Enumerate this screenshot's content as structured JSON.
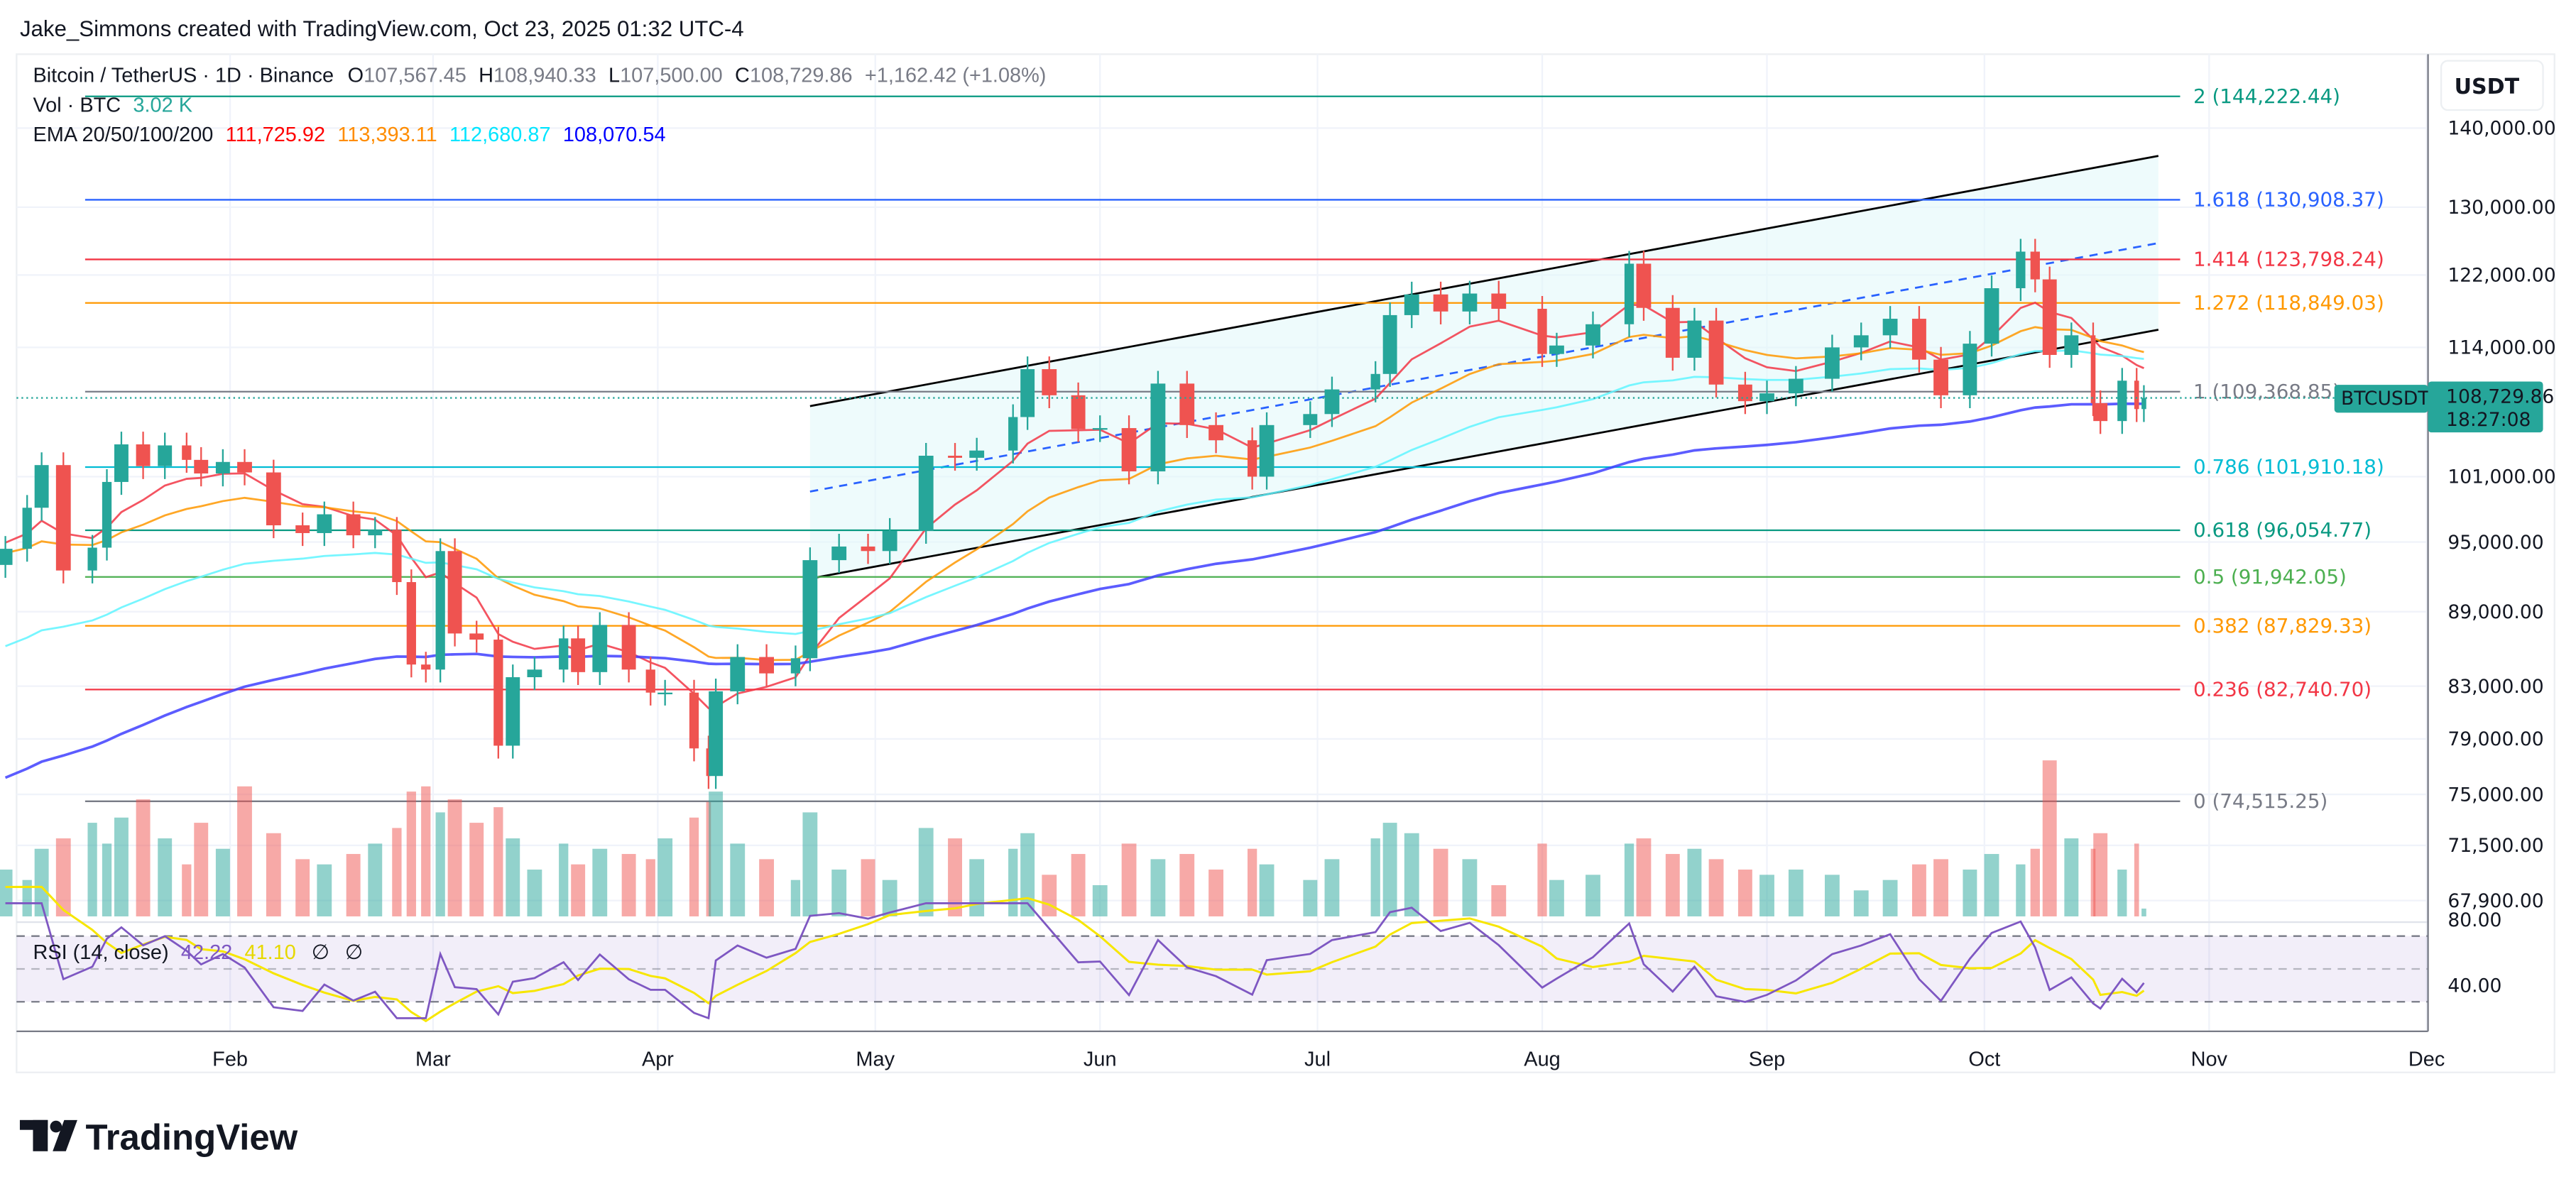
{
  "header": {
    "credit": "Jake_Simmons created with TradingView.com, Oct 23, 2025 01:32 UTC-4"
  },
  "legend": {
    "symbol": "Bitcoin / TetherUS · 1D · Binance",
    "o_label": "O",
    "o_value": "107,567.45",
    "h_label": "H",
    "h_value": "108,940.33",
    "l_label": "L",
    "l_value": "107,500.00",
    "c_label": "C",
    "c_value": "108,729.86",
    "change": "+1,162.42 (+1.08%)",
    "vol_label": "Vol · BTC",
    "vol_value": "3.02 K",
    "ema_label": "EMA 20/50/100/200",
    "ema_values": [
      "111,725.92",
      "113,393.11",
      "112,680.87",
      "108,070.54"
    ],
    "rsi_label": "RSI (14, close)",
    "rsi_value": "42.22",
    "rsi_ma_value": "41.10",
    "rsi_extra": [
      "∅",
      "∅"
    ]
  },
  "axis": {
    "currency": "USDT",
    "price_ticks": [
      "140,000.00",
      "130,000.00",
      "122,000.00",
      "114,000.00",
      "101,000.00",
      "95,000.00",
      "89,000.00",
      "83,000.00",
      "79,000.00",
      "75,000.00",
      "71,500.00",
      "67,900.00"
    ],
    "rsi_ticks": [
      "80.00",
      "40.00"
    ]
  },
  "last_price": {
    "symbol": "BTCUSDT",
    "price": "108,729.86",
    "countdown": "18:27:08"
  },
  "logo": {
    "text": "TradingView"
  },
  "colors": {
    "up": "#26a69a",
    "down": "#ef5350",
    "ema20": "#f23645",
    "ema50": "#ff9800",
    "ema100": "#5ff5ff",
    "ema200": "#3f3fff",
    "rsi": "#7e57c2",
    "rsi_ma": "#f7e600",
    "channel": "#000000",
    "channel_fill": "#e3f8fa",
    "channel_mid": "#2962ff"
  },
  "chart_data": {
    "type": "candlestick",
    "symbol": "BTCUSDT",
    "y_scale": "log",
    "ylim": [
      67900,
      146000
    ],
    "grid": true,
    "x_ticks": [
      {
        "label": "Feb",
        "date": "2025-02-01"
      },
      {
        "label": "Mar",
        "date": "2025-03-01"
      },
      {
        "label": "Apr",
        "date": "2025-04-01"
      },
      {
        "label": "May",
        "date": "2025-05-01"
      },
      {
        "label": "Jun",
        "date": "2025-06-01"
      },
      {
        "label": "Jul",
        "date": "2025-07-01"
      },
      {
        "label": "Aug",
        "date": "2025-08-01"
      },
      {
        "label": "Sep",
        "date": "2025-09-01"
      },
      {
        "label": "Oct",
        "date": "2025-10-01"
      },
      {
        "label": "Nov",
        "date": "2025-11-01"
      },
      {
        "label": "Dec",
        "date": "2025-12-01"
      }
    ],
    "price_ticks": [
      140000,
      130000,
      122000,
      114000,
      101000,
      95000,
      89000,
      83000,
      79000,
      75000,
      71500,
      67900
    ],
    "closes": [
      [
        "2025-01-01",
        94400,
        18
      ],
      [
        "2025-01-04",
        98100,
        14
      ],
      [
        "2025-01-06",
        102100,
        26
      ],
      [
        "2025-01-09",
        92500,
        30
      ],
      [
        "2025-01-13",
        94500,
        36
      ],
      [
        "2025-01-15",
        100500,
        28
      ],
      [
        "2025-01-17",
        104100,
        38
      ],
      [
        "2025-01-20",
        102000,
        45
      ],
      [
        "2025-01-23",
        104000,
        30
      ],
      [
        "2025-01-26",
        102600,
        20
      ],
      [
        "2025-01-28",
        101300,
        36
      ],
      [
        "2025-01-31",
        102400,
        26
      ],
      [
        "2025-02-03",
        101400,
        50
      ],
      [
        "2025-02-07",
        96500,
        32
      ],
      [
        "2025-02-11",
        95800,
        22
      ],
      [
        "2025-02-14",
        97500,
        20
      ],
      [
        "2025-02-18",
        95600,
        24
      ],
      [
        "2025-02-21",
        96100,
        28
      ],
      [
        "2025-02-24",
        91500,
        34
      ],
      [
        "2025-02-26",
        84700,
        48
      ],
      [
        "2025-02-28",
        84300,
        50
      ],
      [
        "2025-03-02",
        94200,
        40
      ],
      [
        "2025-03-04",
        87200,
        45
      ],
      [
        "2025-03-07",
        86700,
        36
      ],
      [
        "2025-03-10",
        78500,
        42
      ],
      [
        "2025-03-12",
        83700,
        30
      ],
      [
        "2025-03-15",
        84300,
        18
      ],
      [
        "2025-03-19",
        86800,
        28
      ],
      [
        "2025-03-21",
        84100,
        20
      ],
      [
        "2025-03-24",
        87900,
        26
      ],
      [
        "2025-03-28",
        84300,
        24
      ],
      [
        "2025-03-31",
        82500,
        22
      ],
      [
        "2025-04-02",
        82500,
        30
      ],
      [
        "2025-04-06",
        78300,
        38
      ],
      [
        "2025-04-08",
        76300,
        44
      ],
      [
        "2025-04-09",
        82600,
        48
      ],
      [
        "2025-04-12",
        85300,
        28
      ],
      [
        "2025-04-16",
        84000,
        22
      ],
      [
        "2025-04-20",
        85200,
        14
      ],
      [
        "2025-04-22",
        93400,
        40
      ],
      [
        "2025-04-26",
        94600,
        18
      ],
      [
        "2025-04-30",
        94200,
        22
      ],
      [
        "2025-05-03",
        96000,
        14
      ],
      [
        "2025-05-08",
        103000,
        34
      ],
      [
        "2025-05-12",
        102800,
        30
      ],
      [
        "2025-05-15",
        103500,
        22
      ],
      [
        "2025-05-20",
        106800,
        26
      ],
      [
        "2025-05-22",
        111700,
        32
      ],
      [
        "2025-05-25",
        109000,
        16
      ],
      [
        "2025-05-29",
        105600,
        24
      ],
      [
        "2025-06-01",
        105700,
        12
      ],
      [
        "2025-06-05",
        101500,
        28
      ],
      [
        "2025-06-09",
        110200,
        22
      ],
      [
        "2025-06-13",
        106000,
        24
      ],
      [
        "2025-06-17",
        104500,
        18
      ],
      [
        "2025-06-22",
        101000,
        26
      ],
      [
        "2025-06-24",
        106000,
        20
      ],
      [
        "2025-06-30",
        107100,
        14
      ],
      [
        "2025-07-03",
        109600,
        22
      ],
      [
        "2025-07-09",
        111200,
        30
      ],
      [
        "2025-07-11",
        117500,
        36
      ],
      [
        "2025-07-14",
        119800,
        32
      ],
      [
        "2025-07-18",
        117900,
        26
      ],
      [
        "2025-07-22",
        119900,
        22
      ],
      [
        "2025-07-26",
        118200,
        12
      ],
      [
        "2025-08-01",
        113300,
        28
      ],
      [
        "2025-08-03",
        114200,
        14
      ],
      [
        "2025-08-08",
        116500,
        16
      ],
      [
        "2025-08-13",
        123300,
        28
      ],
      [
        "2025-08-15",
        118300,
        30
      ],
      [
        "2025-08-19",
        112900,
        24
      ],
      [
        "2025-08-22",
        116900,
        26
      ],
      [
        "2025-08-25",
        110100,
        22
      ],
      [
        "2025-08-29",
        108400,
        18
      ],
      [
        "2025-09-01",
        109200,
        16
      ],
      [
        "2025-09-05",
        110700,
        18
      ],
      [
        "2025-09-10",
        114000,
        16
      ],
      [
        "2025-09-14",
        115300,
        10
      ],
      [
        "2025-09-18",
        117100,
        14
      ],
      [
        "2025-09-22",
        112700,
        20
      ],
      [
        "2025-09-25",
        109000,
        22
      ],
      [
        "2025-09-29",
        114400,
        18
      ],
      [
        "2025-10-02",
        120500,
        24
      ],
      [
        "2025-10-06",
        124700,
        20
      ],
      [
        "2025-10-08",
        121500,
        26
      ],
      [
        "2025-10-10",
        113200,
        60
      ],
      [
        "2025-10-13",
        115300,
        30
      ],
      [
        "2025-10-16",
        108200,
        26
      ],
      [
        "2025-10-17",
        106400,
        32
      ],
      [
        "2025-10-20",
        110500,
        18
      ],
      [
        "2025-10-22",
        107600,
        28
      ],
      [
        "2025-10-23",
        108729.86,
        3
      ]
    ],
    "ema_start": {
      "ema20": 95000,
      "ema50": 94000,
      "ema100": 86000,
      "ema200": 76000
    },
    "fib_span": [
      "2025-01-12",
      "2025-10-28"
    ],
    "fib_levels": [
      {
        "ratio": "2",
        "price": 144222.44,
        "label": "2 (144,222.44)",
        "color": "#089981"
      },
      {
        "ratio": "1.618",
        "price": 130908.37,
        "label": "1.618 (130,908.37)",
        "color": "#2962ff"
      },
      {
        "ratio": "1.414",
        "price": 123798.24,
        "label": "1.414 (123,798.24)",
        "color": "#f23645"
      },
      {
        "ratio": "1.272",
        "price": 118849.03,
        "label": "1.272 (118,849.03)",
        "color": "#ff9800"
      },
      {
        "ratio": "1",
        "price": 109368.85,
        "label": "1 (109,368.85)",
        "color": "#787b86"
      },
      {
        "ratio": "0.786",
        "price": 101910.18,
        "label": "0.786 (101,910.18)",
        "color": "#00bcd4"
      },
      {
        "ratio": "0.618",
        "price": 96054.77,
        "label": "0.618 (96,054.77)",
        "color": "#089981"
      },
      {
        "ratio": "0.5",
        "price": 91942.05,
        "label": "0.5 (91,942.05)",
        "color": "#4caf50"
      },
      {
        "ratio": "0.382",
        "price": 87829.33,
        "label": "0.382 (87,829.33)",
        "color": "#ff9800"
      },
      {
        "ratio": "0.236",
        "price": 82740.7,
        "label": "0.236 (82,740.70)",
        "color": "#f23645"
      },
      {
        "ratio": "0",
        "price": 74515.25,
        "label": "0 (74,515.25)",
        "color": "#787b86"
      }
    ],
    "channel": {
      "upper": [
        [
          "2025-04-22",
          107900
        ],
        [
          "2025-10-25",
          136400
        ]
      ],
      "lower": [
        [
          "2025-04-22",
          91800
        ],
        [
          "2025-10-25",
          115900
        ]
      ],
      "mid": [
        [
          "2025-04-22",
          99600
        ],
        [
          "2025-10-25",
          125700
        ]
      ]
    },
    "rsi_levels": [
      70,
      50,
      30
    ],
    "rsi_range": [
      20,
      90
    ]
  }
}
